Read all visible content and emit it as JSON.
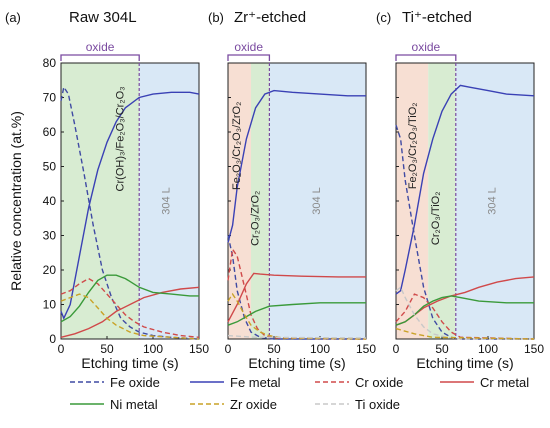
{
  "ylabel": "Relative concentration (at.%)",
  "colors": {
    "fe_oxide": "#3f4aa3",
    "fe_metal": "#3a41b5",
    "cr_oxide": "#d04a4a",
    "cr_metal": "#d0494a",
    "ni_metal": "#3a9a3a",
    "zr_oxide": "#c9a227",
    "ti_oxide": "#c8c8c8",
    "green_fill": "#d8ecd2",
    "blue_fill": "#d9e8f6",
    "pink_fill": "#f7dfd3",
    "bracket": "#7a4aa0"
  },
  "legend": [
    {
      "key": "fe_oxide",
      "label": "Fe oxide",
      "dash": true
    },
    {
      "key": "fe_metal",
      "label": "Fe metal",
      "dash": false
    },
    {
      "key": "cr_oxide",
      "label": "Cr oxide",
      "dash": true
    },
    {
      "key": "cr_metal",
      "label": "Cr metal",
      "dash": false
    },
    {
      "key": "ni_metal",
      "label": "Ni metal",
      "dash": false
    },
    {
      "key": "zr_oxide",
      "label": "Zr oxide",
      "dash": true
    },
    {
      "key": "ti_oxide",
      "label": "Ti oxide",
      "dash": true
    }
  ],
  "chart_data": [
    {
      "type": "line",
      "panel_label": "(a)",
      "title": "Raw 304L",
      "xlabel": "Etching time (s)",
      "ylabel": "Relative concentration (at.%)",
      "xlim": [
        0,
        150
      ],
      "ylim": [
        0,
        80
      ],
      "xticks": [
        0,
        50,
        100,
        150
      ],
      "yticks": [
        0,
        10,
        20,
        30,
        40,
        50,
        60,
        70,
        80
      ],
      "interface_x": 85,
      "oxide_label": "oxide",
      "region_labels": [
        {
          "text": "Cr(OH)₃/Fe₂O₃/Cr₂O₃",
          "x": 68,
          "y": 58
        },
        {
          "text": "304 L",
          "x": 118,
          "y": 40,
          "muted": true
        }
      ],
      "regions": [
        {
          "from": 0,
          "to": 85,
          "fill": "green_fill"
        },
        {
          "from": 85,
          "to": 150,
          "fill": "blue_fill"
        }
      ],
      "series": [
        {
          "name": "Fe oxide",
          "key": "fe_oxide",
          "dash": true,
          "points": [
            [
              0,
              69
            ],
            [
              3,
              73
            ],
            [
              8,
              71
            ],
            [
              15,
              62
            ],
            [
              25,
              48
            ],
            [
              35,
              33
            ],
            [
              45,
              20
            ],
            [
              55,
              12
            ],
            [
              65,
              6
            ],
            [
              75,
              3.5
            ],
            [
              85,
              2
            ],
            [
              100,
              1
            ],
            [
              120,
              0.5
            ],
            [
              150,
              0
            ]
          ]
        },
        {
          "name": "Fe metal",
          "key": "fe_metal",
          "dash": false,
          "points": [
            [
              0,
              8
            ],
            [
              3,
              6
            ],
            [
              10,
              10
            ],
            [
              20,
              24
            ],
            [
              30,
              38
            ],
            [
              40,
              49
            ],
            [
              50,
              57
            ],
            [
              60,
              63
            ],
            [
              70,
              67
            ],
            [
              85,
              70
            ],
            [
              100,
              71
            ],
            [
              120,
              71.5
            ],
            [
              140,
              71.5
            ],
            [
              150,
              71
            ]
          ]
        },
        {
          "name": "Cr oxide",
          "key": "cr_oxide",
          "dash": true,
          "points": [
            [
              0,
              13
            ],
            [
              10,
              14
            ],
            [
              20,
              16
            ],
            [
              30,
              17.5
            ],
            [
              40,
              16
            ],
            [
              50,
              13
            ],
            [
              60,
              10
            ],
            [
              70,
              7
            ],
            [
              80,
              5
            ],
            [
              90,
              3.5
            ],
            [
              110,
              2
            ],
            [
              130,
              1
            ],
            [
              150,
              0.5
            ]
          ]
        },
        {
          "name": "Cr metal",
          "key": "cr_metal",
          "dash": false,
          "points": [
            [
              0,
              0.5
            ],
            [
              15,
              1.5
            ],
            [
              30,
              3
            ],
            [
              45,
              5
            ],
            [
              60,
              8
            ],
            [
              75,
              10
            ],
            [
              90,
              12
            ],
            [
              110,
              13.5
            ],
            [
              130,
              14.5
            ],
            [
              150,
              15
            ]
          ]
        },
        {
          "name": "Ni metal",
          "key": "ni_metal",
          "dash": false,
          "points": [
            [
              0,
              5
            ],
            [
              10,
              6.5
            ],
            [
              20,
              9.5
            ],
            [
              30,
              13.5
            ],
            [
              40,
              17
            ],
            [
              50,
              18.5
            ],
            [
              60,
              18.5
            ],
            [
              70,
              17.5
            ],
            [
              85,
              15
            ],
            [
              100,
              13.5
            ],
            [
              120,
              13
            ],
            [
              140,
              12.5
            ],
            [
              150,
              12.5
            ]
          ]
        },
        {
          "name": "Zr oxide",
          "key": "zr_oxide",
          "dash": true,
          "points": [
            [
              0,
              11
            ],
            [
              10,
              12
            ],
            [
              20,
              13
            ],
            [
              30,
              12
            ],
            [
              40,
              9
            ],
            [
              50,
              6
            ],
            [
              60,
              4
            ],
            [
              75,
              2
            ],
            [
              90,
              1
            ],
            [
              120,
              0.5
            ],
            [
              150,
              0
            ]
          ]
        }
      ]
    },
    {
      "type": "line",
      "panel_label": "(b)",
      "title": "Zr⁺-etched",
      "xlabel": "Etching time (s)",
      "xlim": [
        0,
        150
      ],
      "ylim": [
        0,
        80
      ],
      "xticks": [
        0,
        50,
        100,
        150
      ],
      "yticks": [
        0,
        10,
        20,
        30,
        40,
        50,
        60,
        70,
        80
      ],
      "interface_x": 45,
      "oxide_label": "oxide",
      "region_labels": [
        {
          "text": "Fe₂O₃/Cr₂O₃/ZrO₂",
          "x": 13,
          "y": 56
        },
        {
          "text": "Cr₂O₃/ZrO₂",
          "x": 33,
          "y": 35
        },
        {
          "text": "304 L",
          "x": 100,
          "y": 40,
          "muted": true
        }
      ],
      "regions": [
        {
          "from": 0,
          "to": 25,
          "fill": "pink_fill"
        },
        {
          "from": 25,
          "to": 45,
          "fill": "green_fill"
        },
        {
          "from": 45,
          "to": 150,
          "fill": "blue_fill"
        }
      ],
      "series": [
        {
          "name": "Fe metal",
          "key": "fe_metal",
          "dash": false,
          "points": [
            [
              0,
              28
            ],
            [
              5,
              33
            ],
            [
              10,
              44
            ],
            [
              20,
              58
            ],
            [
              30,
              67
            ],
            [
              40,
              71
            ],
            [
              50,
              72
            ],
            [
              70,
              71.5
            ],
            [
              100,
              71
            ],
            [
              130,
              70.5
            ],
            [
              150,
              70.5
            ]
          ]
        },
        {
          "name": "Fe oxide",
          "key": "fe_oxide",
          "dash": true,
          "points": [
            [
              0,
              30
            ],
            [
              5,
              24
            ],
            [
              10,
              14
            ],
            [
              18,
              6
            ],
            [
              25,
              2
            ],
            [
              35,
              0.5
            ],
            [
              50,
              0
            ],
            [
              150,
              0
            ]
          ]
        },
        {
          "name": "Cr oxide",
          "key": "cr_oxide",
          "dash": true,
          "points": [
            [
              0,
              17
            ],
            [
              5,
              26
            ],
            [
              10,
              24
            ],
            [
              18,
              15
            ],
            [
              25,
              7
            ],
            [
              32,
              3
            ],
            [
              40,
              1
            ],
            [
              50,
              0.3
            ],
            [
              150,
              0
            ]
          ]
        },
        {
          "name": "Cr metal",
          "key": "cr_metal",
          "dash": false,
          "points": [
            [
              0,
              5
            ],
            [
              10,
              10
            ],
            [
              20,
              16
            ],
            [
              28,
              19
            ],
            [
              35,
              18.8
            ],
            [
              50,
              18.5
            ],
            [
              80,
              18.2
            ],
            [
              120,
              18
            ],
            [
              150,
              18
            ]
          ]
        },
        {
          "name": "Ni metal",
          "key": "ni_metal",
          "dash": false,
          "points": [
            [
              0,
              4
            ],
            [
              10,
              5
            ],
            [
              20,
              6.5
            ],
            [
              30,
              8
            ],
            [
              45,
              9.5
            ],
            [
              70,
              10
            ],
            [
              100,
              10.5
            ],
            [
              130,
              10.5
            ],
            [
              150,
              10.5
            ]
          ]
        },
        {
          "name": "Zr oxide",
          "key": "zr_oxide",
          "dash": true,
          "points": [
            [
              0,
              11
            ],
            [
              5,
              13
            ],
            [
              10,
              11
            ],
            [
              18,
              7
            ],
            [
              25,
              4
            ],
            [
              35,
              2
            ],
            [
              45,
              1
            ],
            [
              60,
              0.3
            ],
            [
              150,
              0
            ]
          ]
        },
        {
          "name": "Ti oxide",
          "key": "ti_oxide",
          "dash": true,
          "points": [
            [
              0,
              1
            ],
            [
              30,
              0.5
            ],
            [
              150,
              0.3
            ]
          ]
        }
      ]
    },
    {
      "type": "line",
      "panel_label": "(c)",
      "title": "Ti⁺-etched",
      "xlabel": "Etching time (s)",
      "xlim": [
        0,
        150
      ],
      "ylim": [
        0,
        80
      ],
      "xticks": [
        0,
        50,
        100,
        150
      ],
      "yticks": [
        0,
        10,
        20,
        30,
        40,
        50,
        60,
        70,
        80
      ],
      "interface_x": 65,
      "oxide_label": "oxide",
      "region_labels": [
        {
          "text": "Fe₂O₃/Cr₂O₃/TiO₂",
          "x": 22,
          "y": 56
        },
        {
          "text": "Cr₂O₃/TiO₂",
          "x": 47,
          "y": 35
        },
        {
          "text": "304 L",
          "x": 108,
          "y": 40,
          "muted": true
        }
      ],
      "regions": [
        {
          "from": 0,
          "to": 35,
          "fill": "pink_fill"
        },
        {
          "from": 35,
          "to": 65,
          "fill": "green_fill"
        },
        {
          "from": 65,
          "to": 150,
          "fill": "blue_fill"
        }
      ],
      "series": [
        {
          "name": "Fe metal",
          "key": "fe_metal",
          "dash": false,
          "points": [
            [
              0,
              13
            ],
            [
              5,
              14
            ],
            [
              10,
              20
            ],
            [
              20,
              33
            ],
            [
              30,
              48
            ],
            [
              40,
              58
            ],
            [
              50,
              66
            ],
            [
              60,
              71
            ],
            [
              70,
              73.5
            ],
            [
              80,
              73
            ],
            [
              100,
              72
            ],
            [
              120,
              71
            ],
            [
              150,
              70.5
            ]
          ]
        },
        {
          "name": "Fe oxide",
          "key": "fe_oxide",
          "dash": true,
          "points": [
            [
              0,
              62
            ],
            [
              5,
              58
            ],
            [
              10,
              46
            ],
            [
              20,
              30
            ],
            [
              30,
              15
            ],
            [
              40,
              6
            ],
            [
              50,
              2
            ],
            [
              60,
              0.5
            ],
            [
              70,
              0
            ],
            [
              150,
              0
            ]
          ]
        },
        {
          "name": "Cr oxide",
          "key": "cr_oxide",
          "dash": true,
          "points": [
            [
              0,
              5
            ],
            [
              10,
              8
            ],
            [
              20,
              13
            ],
            [
              30,
              12
            ],
            [
              40,
              9
            ],
            [
              50,
              5
            ],
            [
              60,
              2
            ],
            [
              70,
              0.5
            ],
            [
              150,
              0
            ]
          ]
        },
        {
          "name": "Cr metal",
          "key": "cr_metal",
          "dash": false,
          "points": [
            [
              0,
              4
            ],
            [
              10,
              5
            ],
            [
              20,
              7
            ],
            [
              30,
              9
            ],
            [
              45,
              11
            ],
            [
              60,
              12.5
            ],
            [
              75,
              13.5
            ],
            [
              90,
              15
            ],
            [
              110,
              16.5
            ],
            [
              130,
              17.5
            ],
            [
              150,
              18
            ]
          ]
        },
        {
          "name": "Ni metal",
          "key": "ni_metal",
          "dash": false,
          "points": [
            [
              0,
              4
            ],
            [
              10,
              5
            ],
            [
              20,
              7
            ],
            [
              30,
              9.5
            ],
            [
              40,
              11
            ],
            [
              50,
              12
            ],
            [
              60,
              12.5
            ],
            [
              70,
              12
            ],
            [
              90,
              11
            ],
            [
              120,
              10.5
            ],
            [
              150,
              10.5
            ]
          ]
        },
        {
          "name": "Ti oxide",
          "key": "ti_oxide",
          "dash": true,
          "points": [
            [
              0,
              14
            ],
            [
              5,
              15
            ],
            [
              10,
              12
            ],
            [
              20,
              7
            ],
            [
              30,
              3.5
            ],
            [
              40,
              1.5
            ],
            [
              55,
              0.5
            ],
            [
              70,
              0
            ],
            [
              150,
              0
            ]
          ]
        },
        {
          "name": "Zr oxide",
          "key": "zr_oxide",
          "dash": true,
          "points": [
            [
              0,
              3
            ],
            [
              20,
              1.5
            ],
            [
              40,
              0.5
            ],
            [
              150,
              0
            ]
          ]
        }
      ]
    }
  ]
}
